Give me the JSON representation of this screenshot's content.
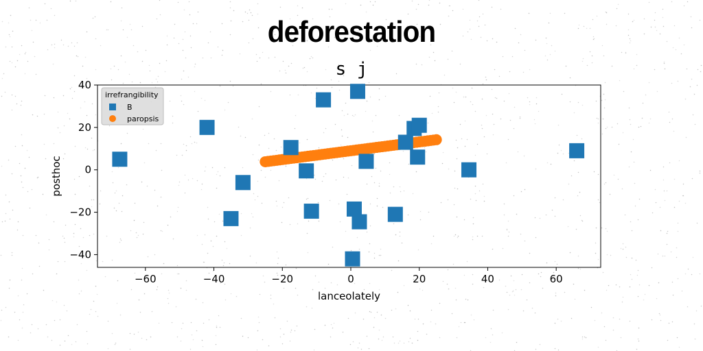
{
  "page": {
    "title": "deforestation",
    "subtitle": "s j"
  },
  "chart_data": {
    "type": "scatter",
    "xlabel": "lanceolately",
    "ylabel": "posthoc",
    "xlim": [
      -74,
      73
    ],
    "ylim": [
      -46,
      40
    ],
    "xticks": [
      -60,
      -40,
      -20,
      0,
      20,
      40,
      60
    ],
    "yticks": [
      -40,
      -20,
      0,
      20,
      40
    ],
    "xtick_labels": [
      "−60",
      "−40",
      "−20",
      "0",
      "20",
      "40",
      "60"
    ],
    "ytick_labels": [
      "−40",
      "−20",
      "0",
      "20",
      "40"
    ],
    "grid": false,
    "legend": {
      "title": "irrefrangibility",
      "position": "top-left",
      "entries": [
        {
          "label": "B",
          "marker": "square",
          "color": "#1f77b4"
        },
        {
          "label": "paropsis",
          "marker": "circle",
          "color": "#ff7f0e"
        }
      ]
    },
    "series": [
      {
        "name": "B",
        "marker": "square",
        "color": "#1f77b4",
        "points": [
          [
            -67.5,
            5
          ],
          [
            -42,
            20
          ],
          [
            -35,
            -23
          ],
          [
            -31.5,
            -6
          ],
          [
            -17.5,
            10.5
          ],
          [
            -13,
            -0.5
          ],
          [
            -11.5,
            -19.5
          ],
          [
            -8,
            33
          ],
          [
            0.5,
            -42
          ],
          [
            1,
            -18.5
          ],
          [
            2,
            37
          ],
          [
            2.5,
            -24.5
          ],
          [
            4.5,
            4
          ],
          [
            13,
            -21
          ],
          [
            16,
            13
          ],
          [
            18.5,
            19.5
          ],
          [
            19.5,
            6
          ],
          [
            20,
            21
          ],
          [
            34.5,
            0
          ],
          [
            66,
            9
          ]
        ]
      },
      {
        "name": "paropsis",
        "marker": "circle",
        "color": "#ff7f0e",
        "x_range": [
          -25,
          25
        ],
        "y_range": [
          3.8,
          14.2
        ]
      }
    ]
  }
}
